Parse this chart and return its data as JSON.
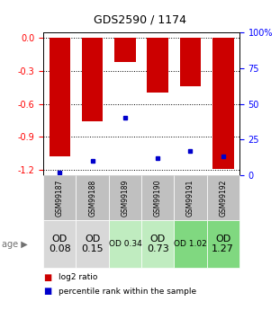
{
  "title": "GDS2590 / 1174",
  "samples": [
    "GSM99187",
    "GSM99188",
    "GSM99189",
    "GSM99190",
    "GSM99191",
    "GSM99192"
  ],
  "log2_ratios": [
    -1.08,
    -0.76,
    -0.22,
    -0.5,
    -0.44,
    -1.19
  ],
  "percentile_ranks": [
    2,
    10,
    40,
    12,
    17,
    13
  ],
  "ylim_left": [
    -1.25,
    0.05
  ],
  "ylim_right": [
    0,
    100
  ],
  "yticks_left": [
    0.0,
    -0.3,
    -0.6,
    -0.9,
    -1.2
  ],
  "yticks_right": [
    0,
    25,
    50,
    75,
    100
  ],
  "bar_color": "#cc0000",
  "marker_color": "#0000cc",
  "age_labels": [
    "OD\n0.08",
    "OD\n0.15",
    "OD 0.34",
    "OD\n0.73",
    "OD 1.02",
    "OD\n1.27"
  ],
  "age_bg_colors": [
    "#d8d8d8",
    "#d8d8d8",
    "#c0ecc0",
    "#c0ecc0",
    "#80d880",
    "#80d880"
  ],
  "age_font_sizes": [
    8,
    8,
    6.5,
    8,
    6.5,
    8
  ],
  "sample_bg_color": "#c0c0c0",
  "legend_log2": "log2 ratio",
  "legend_pct": "percentile rank within the sample",
  "row_label": "age"
}
